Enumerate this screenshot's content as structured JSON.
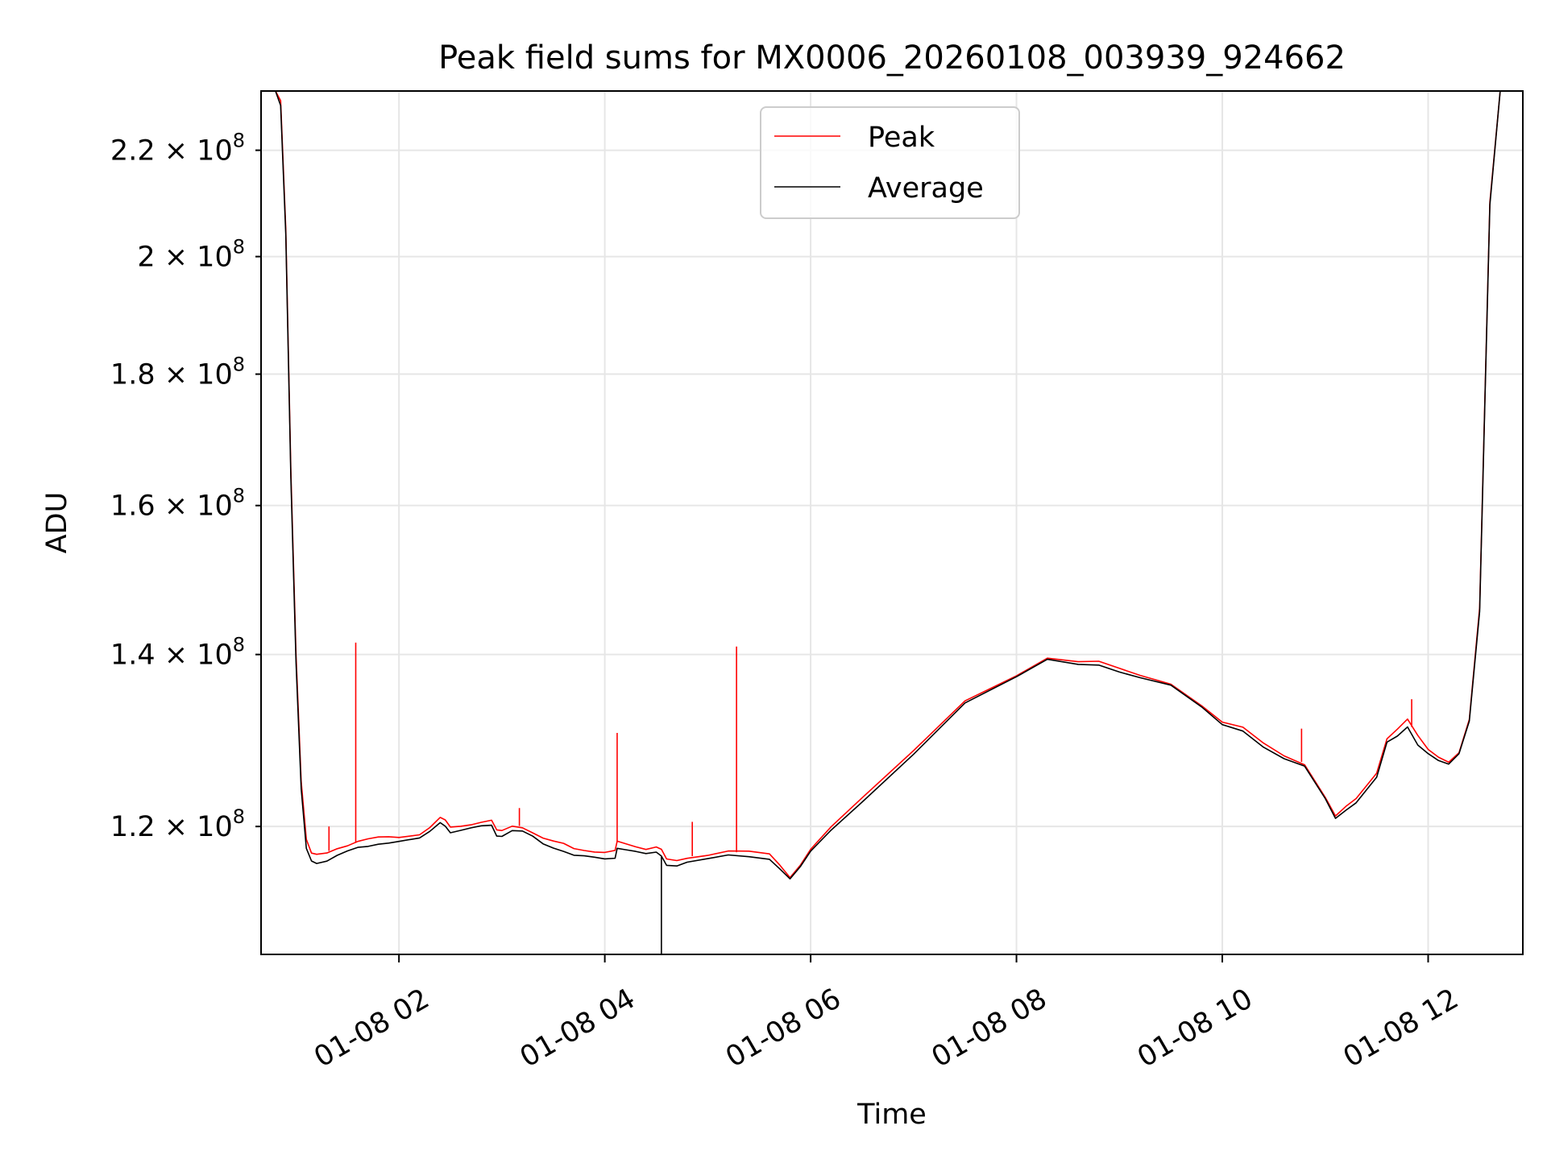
{
  "chart_data": {
    "type": "line",
    "title": "Peak field sums for MX0006_20260108_003939_924662",
    "xlabel": "Time",
    "ylabel": "ADU",
    "y_scale": "log",
    "xlim_hours": [
      0.66,
      12.92
    ],
    "ylim": [
      107000000,
      232000000
    ],
    "grid": true,
    "legend_position": "upper center",
    "x_ticks": [
      {
        "value": 2,
        "label": "01-08 02"
      },
      {
        "value": 4,
        "label": "01-08 04"
      },
      {
        "value": 6,
        "label": "01-08 06"
      },
      {
        "value": 8,
        "label": "01-08 08"
      },
      {
        "value": 10,
        "label": "01-08 10"
      },
      {
        "value": 12,
        "label": "01-08 12"
      }
    ],
    "y_ticks": [
      {
        "value": 120000000,
        "mantissa": "1.2 ×",
        "base": "10",
        "exp": "8"
      },
      {
        "value": 140000000,
        "mantissa": "1.4 ×",
        "base": "10",
        "exp": "8"
      },
      {
        "value": 160000000,
        "mantissa": "1.6 ×",
        "base": "10",
        "exp": "8"
      },
      {
        "value": 180000000,
        "mantissa": "1.8 ×",
        "base": "10",
        "exp": "8"
      },
      {
        "value": 200000000,
        "mantissa": "2 ×",
        "base": "10",
        "exp": "8"
      },
      {
        "value": 220000000,
        "mantissa": "2.2 ×",
        "base": "10",
        "exp": "8"
      }
    ],
    "series": [
      {
        "name": "Peak",
        "color": "#ff0000",
        "x_hours": [
          0.66,
          0.8,
          0.85,
          0.9,
          0.95,
          1.0,
          1.05,
          1.1,
          1.15,
          1.2,
          1.3,
          1.4,
          1.5,
          1.6,
          1.7,
          1.8,
          1.9,
          2.0,
          2.2,
          2.3,
          2.4,
          2.45,
          2.5,
          2.6,
          2.7,
          2.8,
          2.9,
          2.95,
          3.0,
          3.1,
          3.2,
          3.3,
          3.4,
          3.5,
          3.6,
          3.7,
          3.8,
          3.9,
          4.0,
          4.1,
          4.12,
          4.2,
          4.3,
          4.4,
          4.5,
          4.55,
          4.6,
          4.7,
          4.8,
          5.0,
          5.2,
          5.4,
          5.6,
          5.7,
          5.8,
          5.9,
          6.0,
          6.2,
          6.5,
          7.0,
          7.5,
          8.0,
          8.3,
          8.6,
          8.8,
          9.0,
          9.2,
          9.5,
          9.8,
          10.0,
          10.2,
          10.4,
          10.6,
          10.8,
          11.0,
          11.1,
          11.2,
          11.3,
          11.5,
          11.6,
          11.7,
          11.8,
          11.9,
          12.0,
          12.1,
          12.2,
          12.3,
          12.4,
          12.5,
          12.55,
          12.6,
          12.7,
          12.8,
          12.92
        ],
        "y": [
          232000000,
          232000000,
          230000000,
          205000000,
          165000000,
          140000000,
          125000000,
          118500000,
          117000000,
          117000000,
          117300000,
          117800000,
          118000000,
          118300000,
          118500000,
          118800000,
          119000000,
          119000000,
          119200000,
          119800000,
          120800000,
          120600000,
          120000000,
          120200000,
          120300000,
          120400000,
          120500000,
          119500000,
          119600000,
          120200000,
          120000000,
          119300000,
          118600000,
          118300000,
          118200000,
          117800000,
          117600000,
          117300000,
          117100000,
          117300000,
          118400000,
          118300000,
          118000000,
          117600000,
          117700000,
          117400000,
          116500000,
          116500000,
          116800000,
          117000000,
          117300000,
          117200000,
          117000000,
          116000000,
          114800000,
          116000000,
          117500000,
          119800000,
          123000000,
          128500000,
          134500000,
          137500000,
          139500000,
          138900000,
          139000000,
          138300000,
          137600000,
          136500000,
          133700000,
          131600000,
          131000000,
          129300000,
          128000000,
          127000000,
          123200000,
          121000000,
          122000000,
          123000000,
          126000000,
          130000000,
          131000000,
          132000000,
          130000000,
          128500000,
          127800000,
          127300000,
          128300000,
          132000000,
          146000000,
          175000000,
          210000000,
          232000000,
          232000000,
          232000000
        ],
        "spikes": [
          {
            "x": 1.58,
            "y": 141500000
          },
          {
            "x": 1.32,
            "y": 120000000
          },
          {
            "x": 3.17,
            "y": 122000000
          },
          {
            "x": 4.12,
            "y": 130500000
          },
          {
            "x": 4.85,
            "y": 120500000
          },
          {
            "x": 5.28,
            "y": 141000000
          },
          {
            "x": 10.77,
            "y": 131000000
          },
          {
            "x": 11.84,
            "y": 134500000
          }
        ]
      },
      {
        "name": "Average",
        "color": "#000000",
        "x_hours": [
          0.66,
          0.8,
          0.85,
          0.9,
          0.95,
          1.0,
          1.05,
          1.1,
          1.15,
          1.2,
          1.3,
          1.4,
          1.5,
          1.6,
          1.7,
          1.8,
          1.9,
          2.0,
          2.2,
          2.3,
          2.4,
          2.45,
          2.5,
          2.6,
          2.7,
          2.8,
          2.9,
          2.95,
          3.0,
          3.1,
          3.2,
          3.3,
          3.4,
          3.5,
          3.6,
          3.7,
          3.8,
          3.9,
          4.0,
          4.1,
          4.12,
          4.2,
          4.3,
          4.4,
          4.5,
          4.55,
          4.6,
          4.7,
          4.8,
          5.0,
          5.2,
          5.4,
          5.6,
          5.7,
          5.8,
          5.9,
          6.0,
          6.2,
          6.5,
          7.0,
          7.5,
          8.0,
          8.3,
          8.6,
          8.8,
          9.0,
          9.2,
          9.5,
          9.8,
          10.0,
          10.2,
          10.4,
          10.6,
          10.8,
          11.0,
          11.1,
          11.2,
          11.3,
          11.5,
          11.6,
          11.7,
          11.8,
          11.9,
          12.0,
          12.1,
          12.2,
          12.3,
          12.4,
          12.5,
          12.55,
          12.6,
          12.7,
          12.8,
          12.92
        ],
        "y": [
          232000000,
          232000000,
          229000000,
          204000000,
          164000000,
          139000000,
          124000000,
          117500000,
          116300000,
          116200000,
          116500000,
          117000000,
          117300000,
          117600000,
          117800000,
          118200000,
          118400000,
          118500000,
          118700000,
          119300000,
          120300000,
          120100000,
          119500000,
          119700000,
          119800000,
          119900000,
          120000000,
          119000000,
          119100000,
          119700000,
          119500000,
          118800000,
          118000000,
          117700000,
          117500000,
          117100000,
          116900000,
          116600000,
          116400000,
          116600000,
          117800000,
          117700000,
          117400000,
          117000000,
          117100000,
          116800000,
          116000000,
          116000000,
          116300000,
          116500000,
          116800000,
          116700000,
          116600000,
          115700000,
          114600000,
          115700000,
          117200000,
          119500000,
          122700000,
          128200000,
          134200000,
          137200000,
          139200000,
          138600000,
          138700000,
          138000000,
          137300000,
          136200000,
          133400000,
          131300000,
          130700000,
          129000000,
          127700000,
          126700000,
          122900000,
          120700000,
          121700000,
          122700000,
          125600000,
          129500000,
          130000000,
          131000000,
          129000000,
          128200000,
          127500000,
          127000000,
          128000000,
          131700000,
          145500000,
          174500000,
          209500000,
          232000000,
          232000000,
          232000000
        ],
        "dips": [
          {
            "x": 4.55,
            "y": 107000000
          }
        ]
      }
    ]
  }
}
